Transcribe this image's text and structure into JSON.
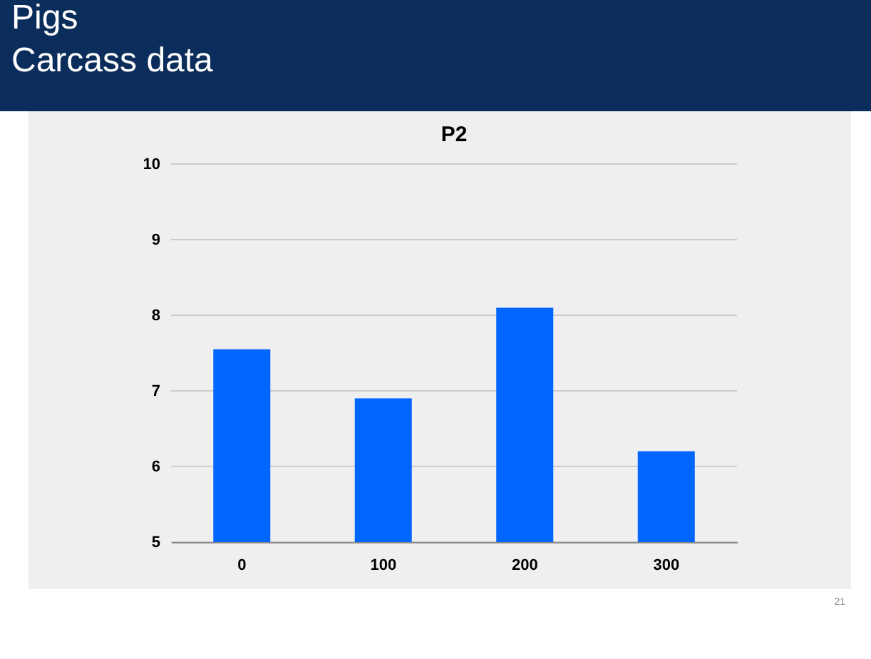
{
  "chart_data": {
    "type": "bar",
    "title": "P2",
    "categories": [
      "0",
      "100",
      "200",
      "300"
    ],
    "values": [
      7.55,
      6.9,
      8.1,
      6.2
    ],
    "color": "#0066ff",
    "ylim": [
      5,
      10
    ],
    "yticks": [
      5,
      6,
      7,
      8,
      9,
      10
    ],
    "grid": "y",
    "annotations": [
      "Pigs",
      "Carcass data",
      "21"
    ]
  }
}
